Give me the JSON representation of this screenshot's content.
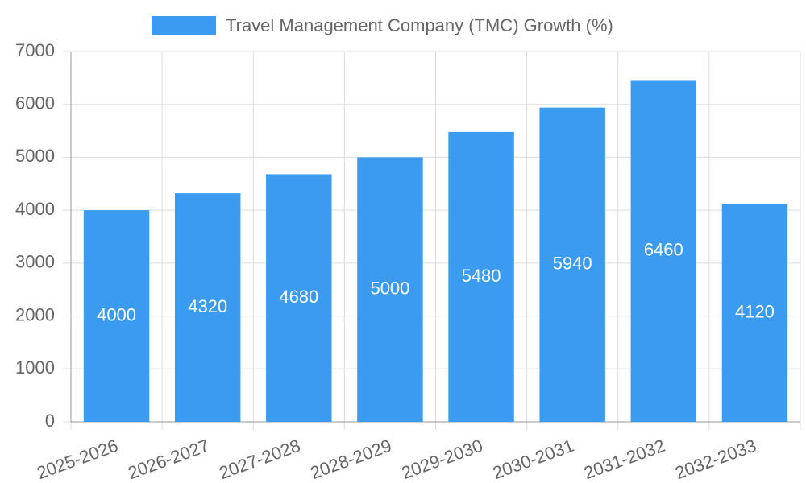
{
  "chart_data": {
    "type": "bar",
    "legend_label": "Travel Management Company (TMC) Growth (%)",
    "categories": [
      "2025-2026",
      "2026-2027",
      "2027-2028",
      "2028-2029",
      "2029-2030",
      "2030-2031",
      "2031-2032",
      "2032-2033"
    ],
    "values": [
      4000,
      4320,
      4680,
      5000,
      5480,
      5940,
      6460,
      4120
    ],
    "color": "#3a9bf0",
    "ylim": [
      0,
      7000
    ],
    "yticks": [
      0,
      1000,
      2000,
      3000,
      4000,
      5000,
      6000,
      7000
    ],
    "grid": true,
    "legend": "top"
  }
}
